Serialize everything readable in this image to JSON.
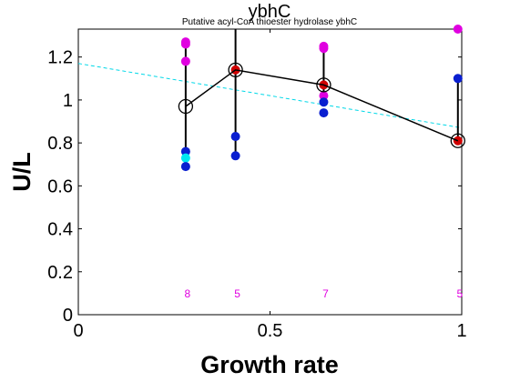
{
  "chart_data": {
    "type": "scatter",
    "title": "ybhC",
    "subtitle": "Putative acyl-CoA thioester hydrolase ybhC",
    "xlabel": "Growth rate",
    "ylabel": "U/L",
    "xlim": [
      0,
      1.0
    ],
    "ylim": [
      0,
      1.33
    ],
    "xticks": [
      0,
      0.5,
      1
    ],
    "xtick_labels": [
      "0",
      "0.5",
      "1"
    ],
    "yticks": [
      0,
      0.2,
      0.4,
      0.6,
      0.8,
      1.0,
      1.2
    ],
    "ytick_labels": [
      "0",
      "0.2",
      "0.4",
      "0.6",
      "0.8",
      "1",
      "1.2"
    ],
    "grid": false,
    "colors": {
      "magenta": "#e000e0",
      "blue": "#0a1fd0",
      "cyan": "#00e6f0",
      "red": "#d00000",
      "trend": "#00d8e8",
      "mean_line": "#000000",
      "count_text": "#e000e0"
    },
    "mean_series": {
      "x": [
        0.28,
        0.41,
        0.64,
        0.99
      ],
      "y": [
        0.97,
        1.14,
        1.07,
        0.81
      ]
    },
    "error_bars": [
      {
        "x": 0.28,
        "low": 0.72,
        "high": 1.25
      },
      {
        "x": 0.41,
        "low": 0.75,
        "high": 1.33
      },
      {
        "x": 0.64,
        "low": 0.97,
        "high": 1.25
      },
      {
        "x": 0.99,
        "low": 0.81,
        "high": 1.1
      }
    ],
    "points": [
      {
        "x": 0.28,
        "y": 1.27,
        "color": "magenta"
      },
      {
        "x": 0.28,
        "y": 1.26,
        "color": "magenta"
      },
      {
        "x": 0.28,
        "y": 1.18,
        "color": "magenta"
      },
      {
        "x": 0.28,
        "y": 0.76,
        "color": "blue"
      },
      {
        "x": 0.28,
        "y": 0.73,
        "color": "cyan"
      },
      {
        "x": 0.28,
        "y": 0.69,
        "color": "blue"
      },
      {
        "x": 0.41,
        "y": 1.14,
        "color": "red"
      },
      {
        "x": 0.41,
        "y": 0.83,
        "color": "blue"
      },
      {
        "x": 0.41,
        "y": 0.74,
        "color": "blue"
      },
      {
        "x": 0.64,
        "y": 1.25,
        "color": "magenta"
      },
      {
        "x": 0.64,
        "y": 1.24,
        "color": "magenta"
      },
      {
        "x": 0.64,
        "y": 1.07,
        "color": "red"
      },
      {
        "x": 0.64,
        "y": 1.02,
        "color": "magenta"
      },
      {
        "x": 0.64,
        "y": 0.99,
        "color": "blue"
      },
      {
        "x": 0.64,
        "y": 0.94,
        "color": "blue"
      },
      {
        "x": 0.99,
        "y": 1.33,
        "color": "magenta"
      },
      {
        "x": 0.99,
        "y": 1.1,
        "color": "blue"
      },
      {
        "x": 0.99,
        "y": 0.81,
        "color": "red"
      }
    ],
    "trend_line": {
      "x": [
        0,
        1.0
      ],
      "y": [
        1.17,
        0.87
      ]
    },
    "counts": [
      {
        "x": 0.28,
        "label": "8"
      },
      {
        "x": 0.41,
        "label": "5"
      },
      {
        "x": 0.64,
        "label": "7"
      },
      {
        "x": 0.99,
        "label": "5"
      }
    ]
  }
}
